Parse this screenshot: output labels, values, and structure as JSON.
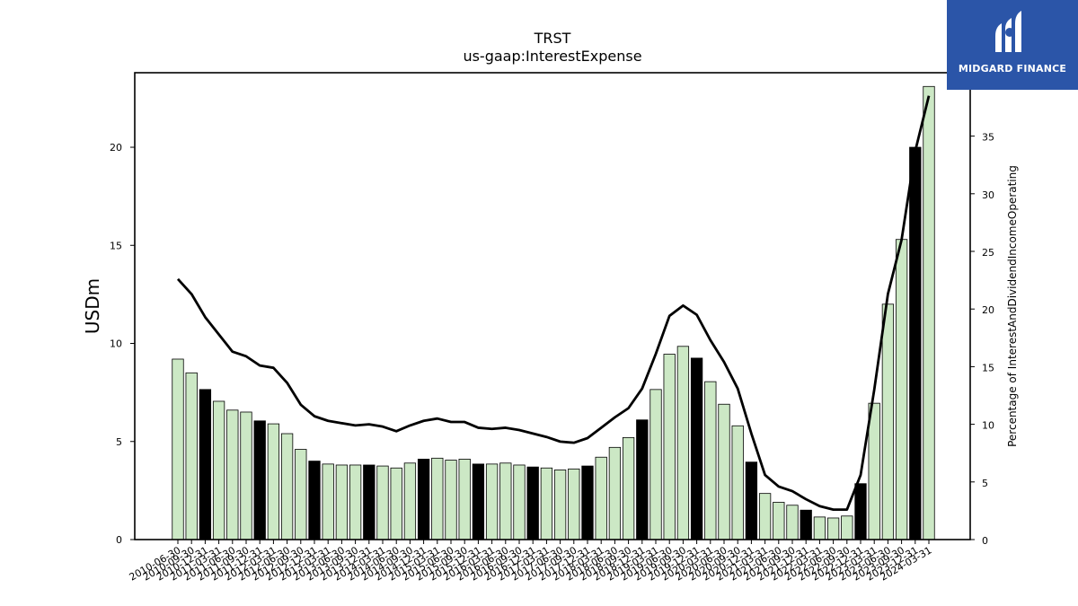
{
  "chart_data": {
    "type": "bar",
    "title": "TRST",
    "subtitle": "us-gaap:InterestExpense",
    "ylabel": "USDm",
    "y2label": "Percentage of InterestAndDividendIncomeOperating",
    "ylim": [
      0,
      23.8
    ],
    "y2lim": [
      0,
      40.5
    ],
    "yticks": [
      0,
      5,
      10,
      15,
      20
    ],
    "y2ticks": [
      0,
      5,
      10,
      15,
      20,
      25,
      30,
      35
    ],
    "categories": [
      "2010-06-30",
      "2010-09-30",
      "2010-12-31",
      "2011-03-31",
      "2011-06-30",
      "2011-09-30",
      "2011-12-31",
      "2012-03-31",
      "2012-06-30",
      "2012-09-30",
      "2012-12-31",
      "2013-03-31",
      "2013-06-30",
      "2013-09-30",
      "2013-12-31",
      "2014-03-31",
      "2014-06-30",
      "2014-09-30",
      "2014-12-31",
      "2015-03-31",
      "2015-06-30",
      "2015-09-30",
      "2015-12-31",
      "2016-03-31",
      "2016-06-30",
      "2016-09-30",
      "2016-12-31",
      "2017-03-31",
      "2017-06-30",
      "2017-09-30",
      "2017-12-31",
      "2018-03-31",
      "2018-06-30",
      "2018-09-30",
      "2018-12-31",
      "2019-03-31",
      "2019-06-30",
      "2019-09-30",
      "2019-12-31",
      "2020-03-31",
      "2020-06-30",
      "2020-09-30",
      "2020-12-31",
      "2021-03-31",
      "2021-06-30",
      "2021-09-30",
      "2021-12-31",
      "2022-03-31",
      "2022-06-30",
      "2022-09-30",
      "2022-12-31",
      "2023-03-31",
      "2023-06-30",
      "2023-09-30",
      "2023-12-31",
      "2024-03-31"
    ],
    "values": [
      9.2,
      8.5,
      7.65,
      7.05,
      6.6,
      6.5,
      6.05,
      5.9,
      5.4,
      4.6,
      4.0,
      3.85,
      3.8,
      3.8,
      3.8,
      3.75,
      3.65,
      3.9,
      4.1,
      4.15,
      4.05,
      4.1,
      3.85,
      3.85,
      3.9,
      3.8,
      3.7,
      3.65,
      3.55,
      3.6,
      3.75,
      4.2,
      4.7,
      5.2,
      6.1,
      7.65,
      9.45,
      9.85,
      9.25,
      8.05,
      6.9,
      5.8,
      3.95,
      2.35,
      1.9,
      1.75,
      1.5,
      1.15,
      1.1,
      1.2,
      2.85,
      6.95,
      12.0,
      15.3,
      20.0,
      23.1
    ],
    "q4_highlight": [
      false,
      false,
      true,
      false,
      false,
      false,
      true,
      false,
      false,
      false,
      true,
      false,
      false,
      false,
      true,
      false,
      false,
      false,
      true,
      false,
      false,
      false,
      true,
      false,
      false,
      false,
      true,
      false,
      false,
      false,
      true,
      false,
      false,
      false,
      true,
      false,
      false,
      false,
      true,
      false,
      false,
      false,
      true,
      false,
      false,
      false,
      true,
      false,
      false,
      false,
      true,
      false,
      false,
      false,
      true,
      false
    ],
    "line_values": [
      22.6,
      21.3,
      19.3,
      17.8,
      16.3,
      15.9,
      15.1,
      14.9,
      13.6,
      11.7,
      10.7,
      10.3,
      10.1,
      9.9,
      10.0,
      9.8,
      9.4,
      9.9,
      10.3,
      10.5,
      10.2,
      10.2,
      9.7,
      9.6,
      9.7,
      9.5,
      9.2,
      8.9,
      8.5,
      8.4,
      8.8,
      9.7,
      10.6,
      11.4,
      13.1,
      16.1,
      19.4,
      20.3,
      19.5,
      17.3,
      15.4,
      13.1,
      9.2,
      5.6,
      4.6,
      4.2,
      3.5,
      2.9,
      2.6,
      2.6,
      5.6,
      13.0,
      21.3,
      26.0,
      33.7,
      38.5
    ],
    "colors": {
      "bar": "#cce8c5",
      "bar_highlight": "#000000",
      "bar_edge": "#000000",
      "line": "#000000"
    }
  },
  "logo": {
    "text": "MIDGARD FINANCE",
    "background": "#2b55a8"
  }
}
